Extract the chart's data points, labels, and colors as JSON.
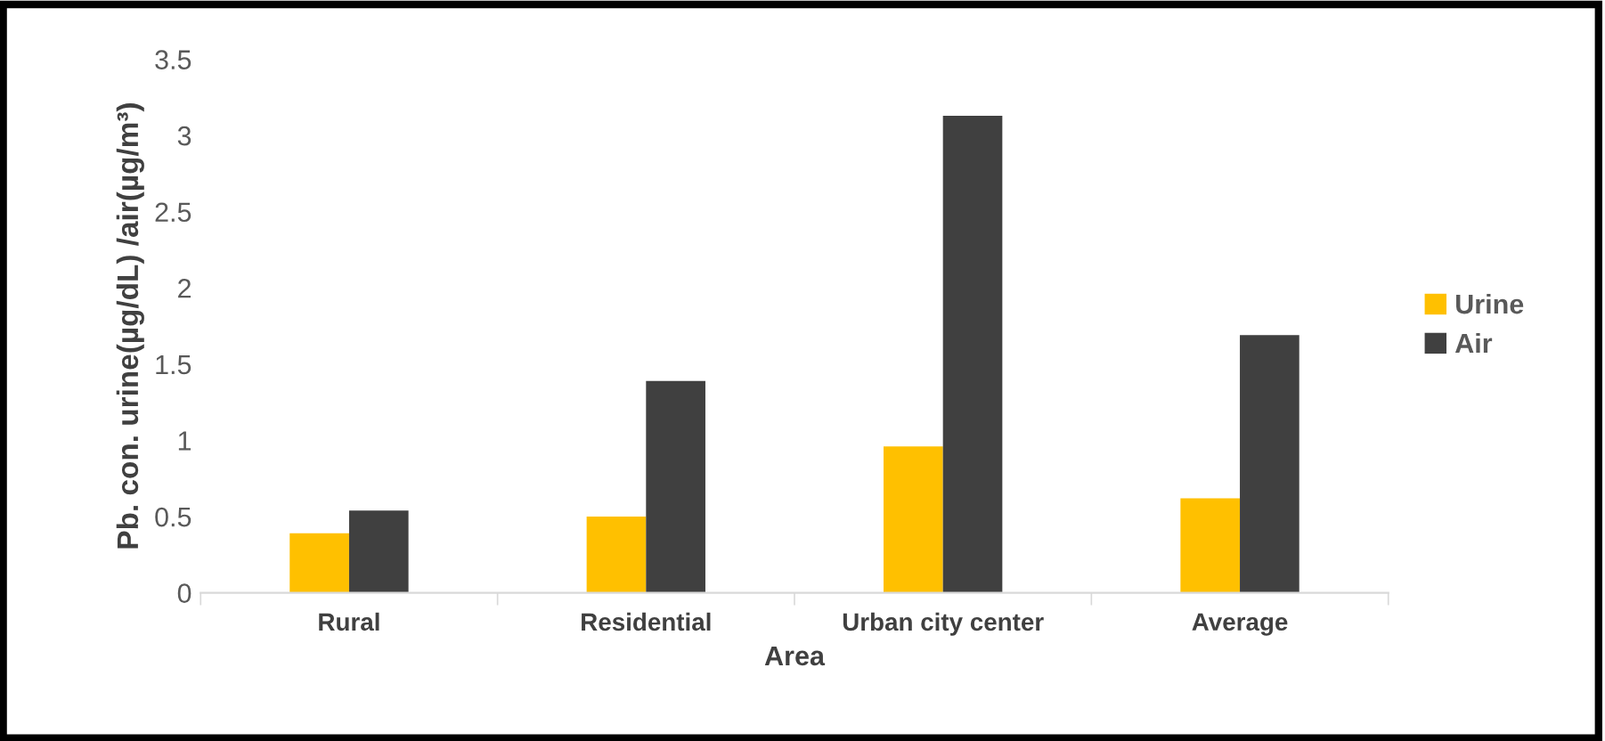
{
  "chart_data": {
    "type": "bar",
    "xlabel": "Area",
    "ylabel": "Pb. con. urine(µg/dL) /air(µg/m³)",
    "categories": [
      "Rural",
      "Residential",
      "Urban city center",
      "Average"
    ],
    "series": [
      {
        "name": "Urine",
        "color": "#ffc000",
        "values": [
          0.39,
          0.5,
          0.96,
          0.62
        ]
      },
      {
        "name": "Air",
        "color": "#404040",
        "values": [
          0.54,
          1.39,
          3.13,
          1.69
        ]
      }
    ],
    "ylim": [
      0,
      3.5
    ],
    "yticks": [
      0,
      0.5,
      1,
      1.5,
      2,
      2.5,
      3,
      3.5
    ],
    "grid": false,
    "legend": "right"
  }
}
